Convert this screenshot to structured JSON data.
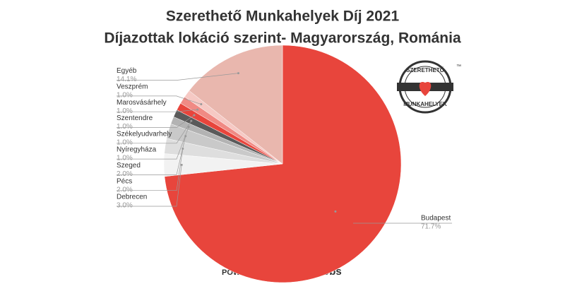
{
  "chart_data": {
    "type": "pie",
    "title": "Szerethető Munkahelyek Díj 2021",
    "subtitle": "Díjazottak lokáció szerint- Magyarország, Románia",
    "categories": [
      "Budapest",
      "Debrecen",
      "Pécs",
      "Szeged",
      "Nyíregyháza",
      "Székelyudvarhely",
      "Szentendre",
      "Marosvásárhely",
      "Veszprém",
      "Egyéb"
    ],
    "values": [
      71.7,
      3.0,
      2.0,
      2.0,
      1.0,
      1.0,
      1.0,
      1.0,
      1.0,
      14.1
    ],
    "value_labels": [
      "71.7%",
      "3.0%",
      "2.0%",
      "2.0%",
      "1.0%",
      "1.0%",
      "1.0%",
      "1.0%",
      "1.0%",
      "14.1%"
    ],
    "colors": [
      "#e8453c",
      "#f2f2f2",
      "#dedede",
      "#c9c9c9",
      "#b3b3b3",
      "#5a5a5a",
      "#e8453c",
      "#f08a84",
      "#f6c9c4",
      "#e9b7ae"
    ]
  },
  "logo": {
    "top": "SZERETHETŐ",
    "bottom": "MUNKAHELYEK",
    "mark": "™"
  },
  "footer": {
    "powered": "POWERED BY",
    "brand": "DreamJobs"
  }
}
